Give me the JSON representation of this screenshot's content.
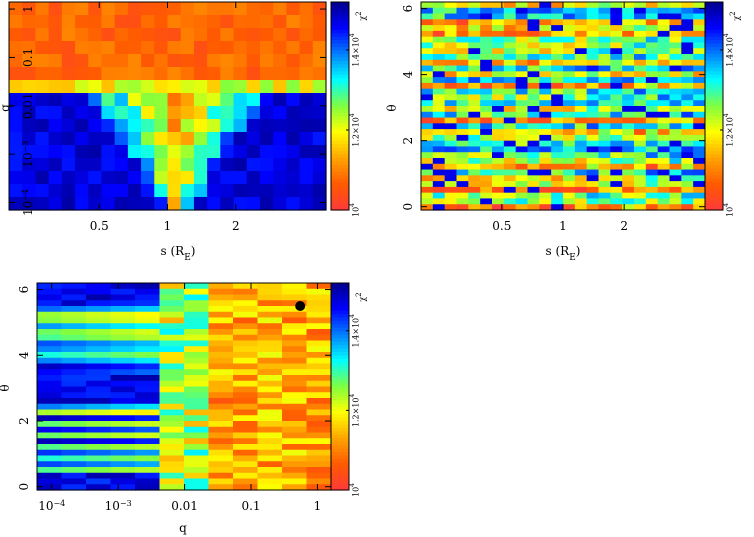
{
  "chart_data": [
    {
      "type": "heatmap",
      "panel": "top-left",
      "xlabel": "s (R",
      "xlabel_sub": "E",
      "xlabel_close": ")",
      "ylabel": "q",
      "x_scale": "log",
      "y_scale": "log",
      "xlim": [
        0.2,
        5.0
      ],
      "ylim": [
        7e-05,
        1.4
      ],
      "x_ticks": [
        {
          "label": "0.5",
          "value": 0.5
        },
        {
          "label": "1",
          "value": 1
        },
        {
          "label": "2",
          "value": 2
        }
      ],
      "y_ticks": [
        {
          "label": "10",
          "exp": "−4",
          "value": 0.0001
        },
        {
          "label": "10",
          "exp": "−3",
          "value": 0.001
        },
        {
          "label": "0.01",
          "value": 0.01
        },
        {
          "label": "0.1",
          "value": 0.1
        },
        {
          "label": "1",
          "value": 1
        }
      ],
      "grid": false,
      "colorbar": {
        "title": "χ",
        "title_sup": "2",
        "range": [
          10000,
          15200
        ],
        "ticks": [
          {
            "label": "10",
            "exp": "4",
            "value": 10000
          },
          {
            "label": "1.2×10",
            "exp": "4",
            "value": 12000
          },
          {
            "label": "1.4×10",
            "exp": "4",
            "value": 14000
          }
        ],
        "colors": [
          "#ff3a3a",
          "#ff5a00",
          "#ffa500",
          "#ffff00",
          "#80ff40",
          "#00ffff",
          "#0080ff",
          "#0000ff",
          "#00008b"
        ]
      },
      "grid_shape": [
        24,
        16
      ],
      "pattern": "Low χ² (red/orange) fills the upper region q > 0.01 across all s; a narrow V-shaped trough of low χ² extends down to q ~ 1e-4 around s ≈ 1; high χ² (blue) elsewhere at small q."
    },
    {
      "type": "heatmap",
      "panel": "top-right",
      "xlabel": "s (R",
      "xlabel_sub": "E",
      "xlabel_close": ")",
      "ylabel": "θ",
      "x_scale": "log",
      "xlim": [
        0.2,
        5.0
      ],
      "ylim": [
        -0.1,
        6.2
      ],
      "x_ticks": [
        {
          "label": "0.5",
          "value": 0.5
        },
        {
          "label": "1",
          "value": 1
        },
        {
          "label": "2",
          "value": 2
        }
      ],
      "y_ticks": [
        {
          "label": "0",
          "value": 0
        },
        {
          "label": "2",
          "value": 2
        },
        {
          "label": "4",
          "value": 4
        },
        {
          "label": "6",
          "value": 6
        }
      ],
      "grid": false,
      "colorbar": {
        "title": "χ",
        "title_sup": "2",
        "range": [
          10000,
          15200
        ],
        "ticks": [
          {
            "label": "10",
            "exp": "4",
            "value": 10000
          },
          {
            "label": "1.2×10",
            "exp": "4",
            "value": 12000
          },
          {
            "label": "1.4×10",
            "exp": "4",
            "value": 14000
          }
        ],
        "colors": [
          "#ff3a3a",
          "#ff5a00",
          "#ffa500",
          "#ffff00",
          "#80ff40",
          "#00ffff",
          "#0080ff",
          "#0000ff",
          "#00008b"
        ]
      },
      "grid_shape": [
        24,
        36
      ],
      "pattern": "Horizontal banding in θ: mixed red/yellow/cyan stripes across all s, with low χ² concentrated near θ ≈ 4.5–6 and θ ≈ 0.5–2; blue patches scattered especially at large s."
    },
    {
      "type": "heatmap",
      "panel": "bottom-left",
      "xlabel": "q",
      "ylabel": "θ",
      "x_scale": "log",
      "xlim": [
        6e-05,
        1.6
      ],
      "ylim": [
        -0.1,
        6.2
      ],
      "x_ticks": [
        {
          "label": "10",
          "exp": "−4",
          "value": 0.0001
        },
        {
          "label": "10",
          "exp": "−3",
          "value": 0.001
        },
        {
          "label": "0.01",
          "value": 0.01
        },
        {
          "label": "0.1",
          "value": 0.1
        },
        {
          "label": "1",
          "value": 1
        }
      ],
      "y_ticks": [
        {
          "label": "0",
          "value": 0
        },
        {
          "label": "2",
          "value": 2
        },
        {
          "label": "4",
          "value": 4
        },
        {
          "label": "6",
          "value": 6
        }
      ],
      "grid": false,
      "colorbar": {
        "title": "χ",
        "title_sup": "2",
        "range": [
          10000,
          15200
        ],
        "ticks": [
          {
            "label": "10",
            "exp": "4",
            "value": 10000
          },
          {
            "label": "1.2×10",
            "exp": "4",
            "value": 12000
          },
          {
            "label": "1.4×10",
            "exp": "4",
            "value": 14000
          }
        ],
        "colors": [
          "#ff3a3a",
          "#ff5a00",
          "#ffa500",
          "#ffff00",
          "#80ff40",
          "#00ffff",
          "#0080ff",
          "#0000ff",
          "#00008b"
        ]
      },
      "grid_shape": [
        12,
        36
      ],
      "pattern": "Low χ² (red/orange) for q > 0.01 at all θ; high χ² (blue) for q < 1e-3 except horizontal bands near θ ≈ 0.5–2.5 and θ ≈ 3.5–5.5.",
      "marker": {
        "q": 0.55,
        "theta": 5.5,
        "color": "#000000"
      }
    }
  ]
}
